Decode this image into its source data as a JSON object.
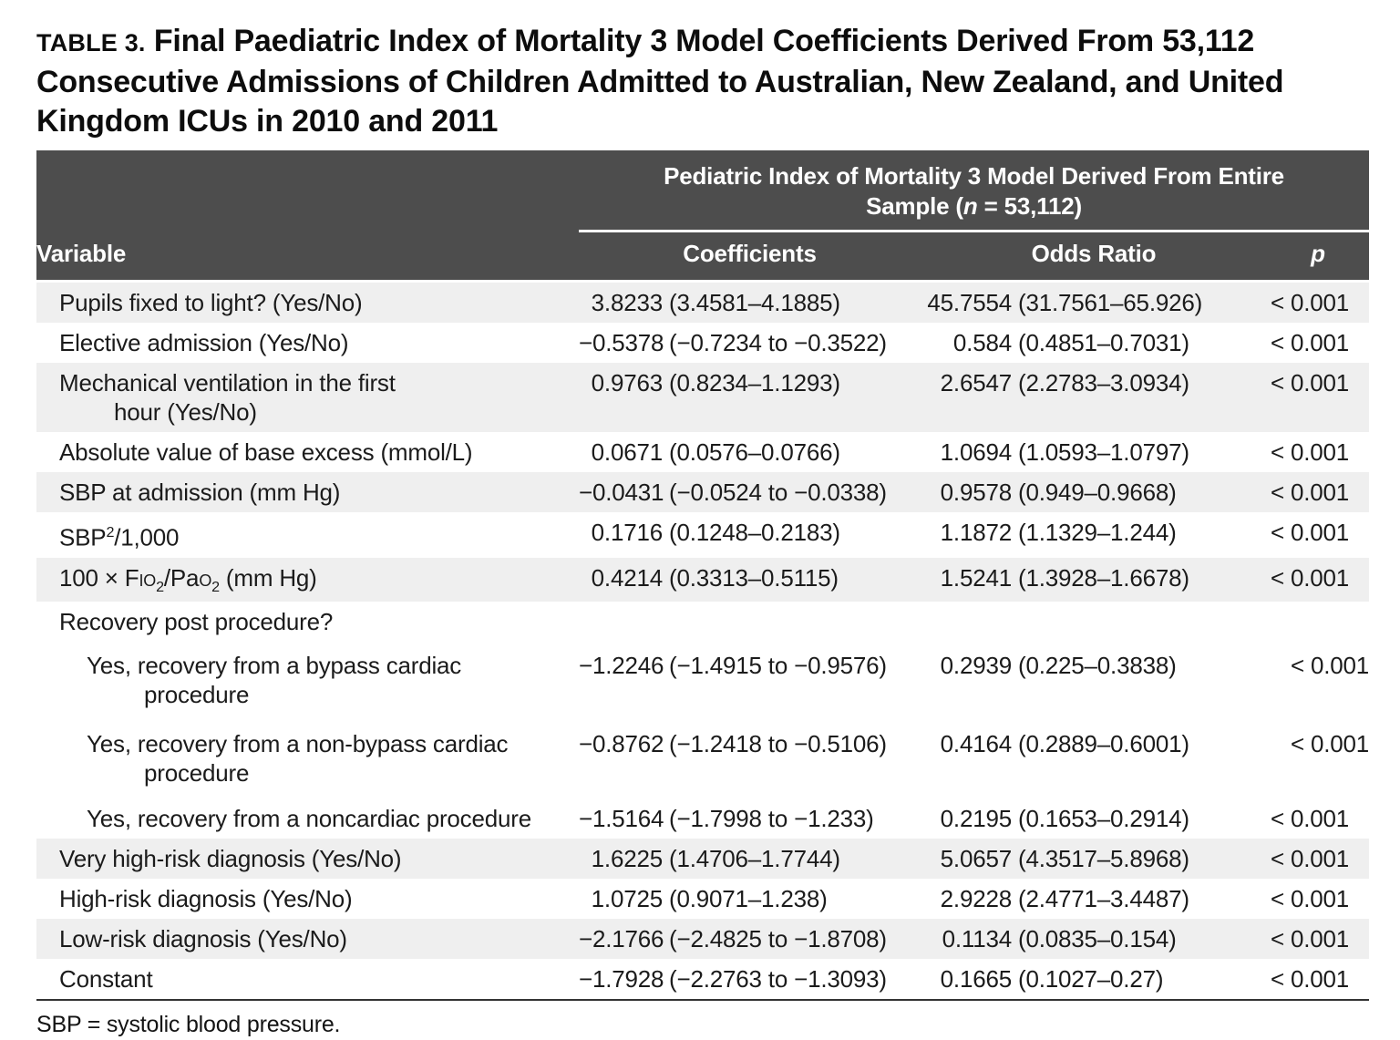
{
  "title": {
    "label": "TABLE 3.",
    "text": " Final Paediatric Index of Mortality 3 Model Coefficients Derived From 53,112\nConsecutive Admissions of Children Admitted to Australian, New Zealand, and United\nKingdom ICUs in 2010 and 2011"
  },
  "table": {
    "span_header_parts": [
      {
        "text": "Pediatric Index of Mortality 3 Model Derived From Entire\nSample ("
      },
      {
        "text": "n",
        "italic": true
      },
      {
        "text": " = 53,112)"
      }
    ],
    "columns": [
      {
        "label": "Variable"
      },
      {
        "label": "Coefficients"
      },
      {
        "label": "Odds Ratio"
      },
      {
        "label": "p",
        "italic": true
      }
    ],
    "rows": [
      {
        "variable": "Pupils fixed to light? (Yes/No)",
        "coefficients": "3.8233 (3.4581–4.1885)",
        "odds_ratio": "45.7554 (31.7561–65.926)",
        "p": "< 0.001",
        "shaded": true
      },
      {
        "variable": "Elective admission (Yes/No)",
        "coefficients": "−0.5378 (−0.7234 to −0.3522)",
        "odds_ratio": "0.584 (0.4851–0.7031)",
        "p": "< 0.001",
        "shaded": false
      },
      {
        "variable": "Mechanical ventilation in the first\nhour (Yes/No)",
        "coefficients": "0.9763 (0.8234–1.1293)",
        "odds_ratio": "2.6547 (2.2783–3.0934)",
        "p": "< 0.001",
        "shaded": true
      },
      {
        "variable": "Absolute value of base excess (mmol/L)",
        "coefficients": "0.0671 (0.0576–0.0766)",
        "odds_ratio": "1.0694 (1.0593–1.0797)",
        "p": "< 0.001",
        "shaded": false
      },
      {
        "variable": "SBP at admission (mm Hg)",
        "coefficients": "−0.0431 (−0.0524 to −0.0338)",
        "odds_ratio": "0.9578 (0.949–0.9668)",
        "p": "< 0.001",
        "shaded": true
      },
      {
        "variable": "SBP2/1,000",
        "variable_parts": [
          {
            "text": "SBP"
          },
          {
            "text": "2",
            "sup": true
          },
          {
            "text": "/1,000"
          }
        ],
        "coefficients": "0.1716 (0.1248–0.2183)",
        "odds_ratio": "1.1872 (1.1329–1.244)",
        "p": "< 0.001",
        "shaded": false
      },
      {
        "variable": "100 × Fio2/Pao2 (mm Hg)",
        "variable_parts": [
          {
            "text": "100 × F"
          },
          {
            "text": "io",
            "smallcaps": true
          },
          {
            "text": "2",
            "sub": true
          },
          {
            "text": "/Pa"
          },
          {
            "text": "o",
            "smallcaps": true
          },
          {
            "text": "2",
            "sub": true
          },
          {
            "text": " (mm Hg)"
          }
        ],
        "coefficients": "0.4214 (0.3313–0.5115)",
        "odds_ratio": "1.5241 (1.3928–1.6678)",
        "p": "< 0.001",
        "shaded": true
      },
      {
        "variable": "Recovery post procedure?",
        "coefficients": "",
        "odds_ratio": "",
        "p": "",
        "shaded": false
      },
      {
        "variable": "Yes, recovery from a bypass cardiac\nprocedure",
        "coefficients": "−1.2246 (−1.4915 to −0.9576)",
        "odds_ratio": "0.2939 (0.225–0.3838)",
        "p": "< 0.001",
        "shaded": false,
        "indent": true,
        "tall": true
      },
      {
        "variable": "Yes, recovery from a non-bypass cardiac\nprocedure",
        "coefficients": "−0.8762 (−1.2418 to −0.5106)",
        "odds_ratio": "0.4164 (0.2889–0.6001)",
        "p": "< 0.001",
        "shaded": false,
        "indent": true,
        "tall": true
      },
      {
        "variable": "Yes, recovery from a noncardiac procedure",
        "coefficients": "−1.5164 (−1.7998 to −1.233)",
        "odds_ratio": "0.2195 (0.1653–0.2914)",
        "p": "< 0.001",
        "shaded": false,
        "indent": true
      },
      {
        "variable": "Very high-risk diagnosis (Yes/No)",
        "coefficients": "1.6225 (1.4706–1.7744)",
        "odds_ratio": "5.0657 (4.3517–5.8968)",
        "p": "< 0.001",
        "shaded": true
      },
      {
        "variable": "High-risk diagnosis (Yes/No)",
        "coefficients": "1.0725 (0.9071–1.238)",
        "odds_ratio": "2.9228 (2.4771–3.4487)",
        "p": "< 0.001",
        "shaded": false
      },
      {
        "variable": "Low-risk diagnosis (Yes/No)",
        "coefficients": "−2.1766 (−2.4825 to −1.8708)",
        "odds_ratio": "0.1134 (0.0835–0.154)",
        "p": "< 0.001",
        "shaded": true
      },
      {
        "variable": "Constant",
        "coefficients": "−1.7928 (−2.2763 to −1.3093)",
        "odds_ratio": "0.1665 (0.1027–0.27)",
        "p": "< 0.001",
        "shaded": false
      }
    ]
  },
  "footnote": "SBP = systolic blood pressure.",
  "colors": {
    "header_background": "#4d4d4d",
    "header_text": "#ffffff",
    "row_stripe": "#efefef",
    "body_text": "#1b1b1b",
    "bottom_rule": "#333333"
  }
}
